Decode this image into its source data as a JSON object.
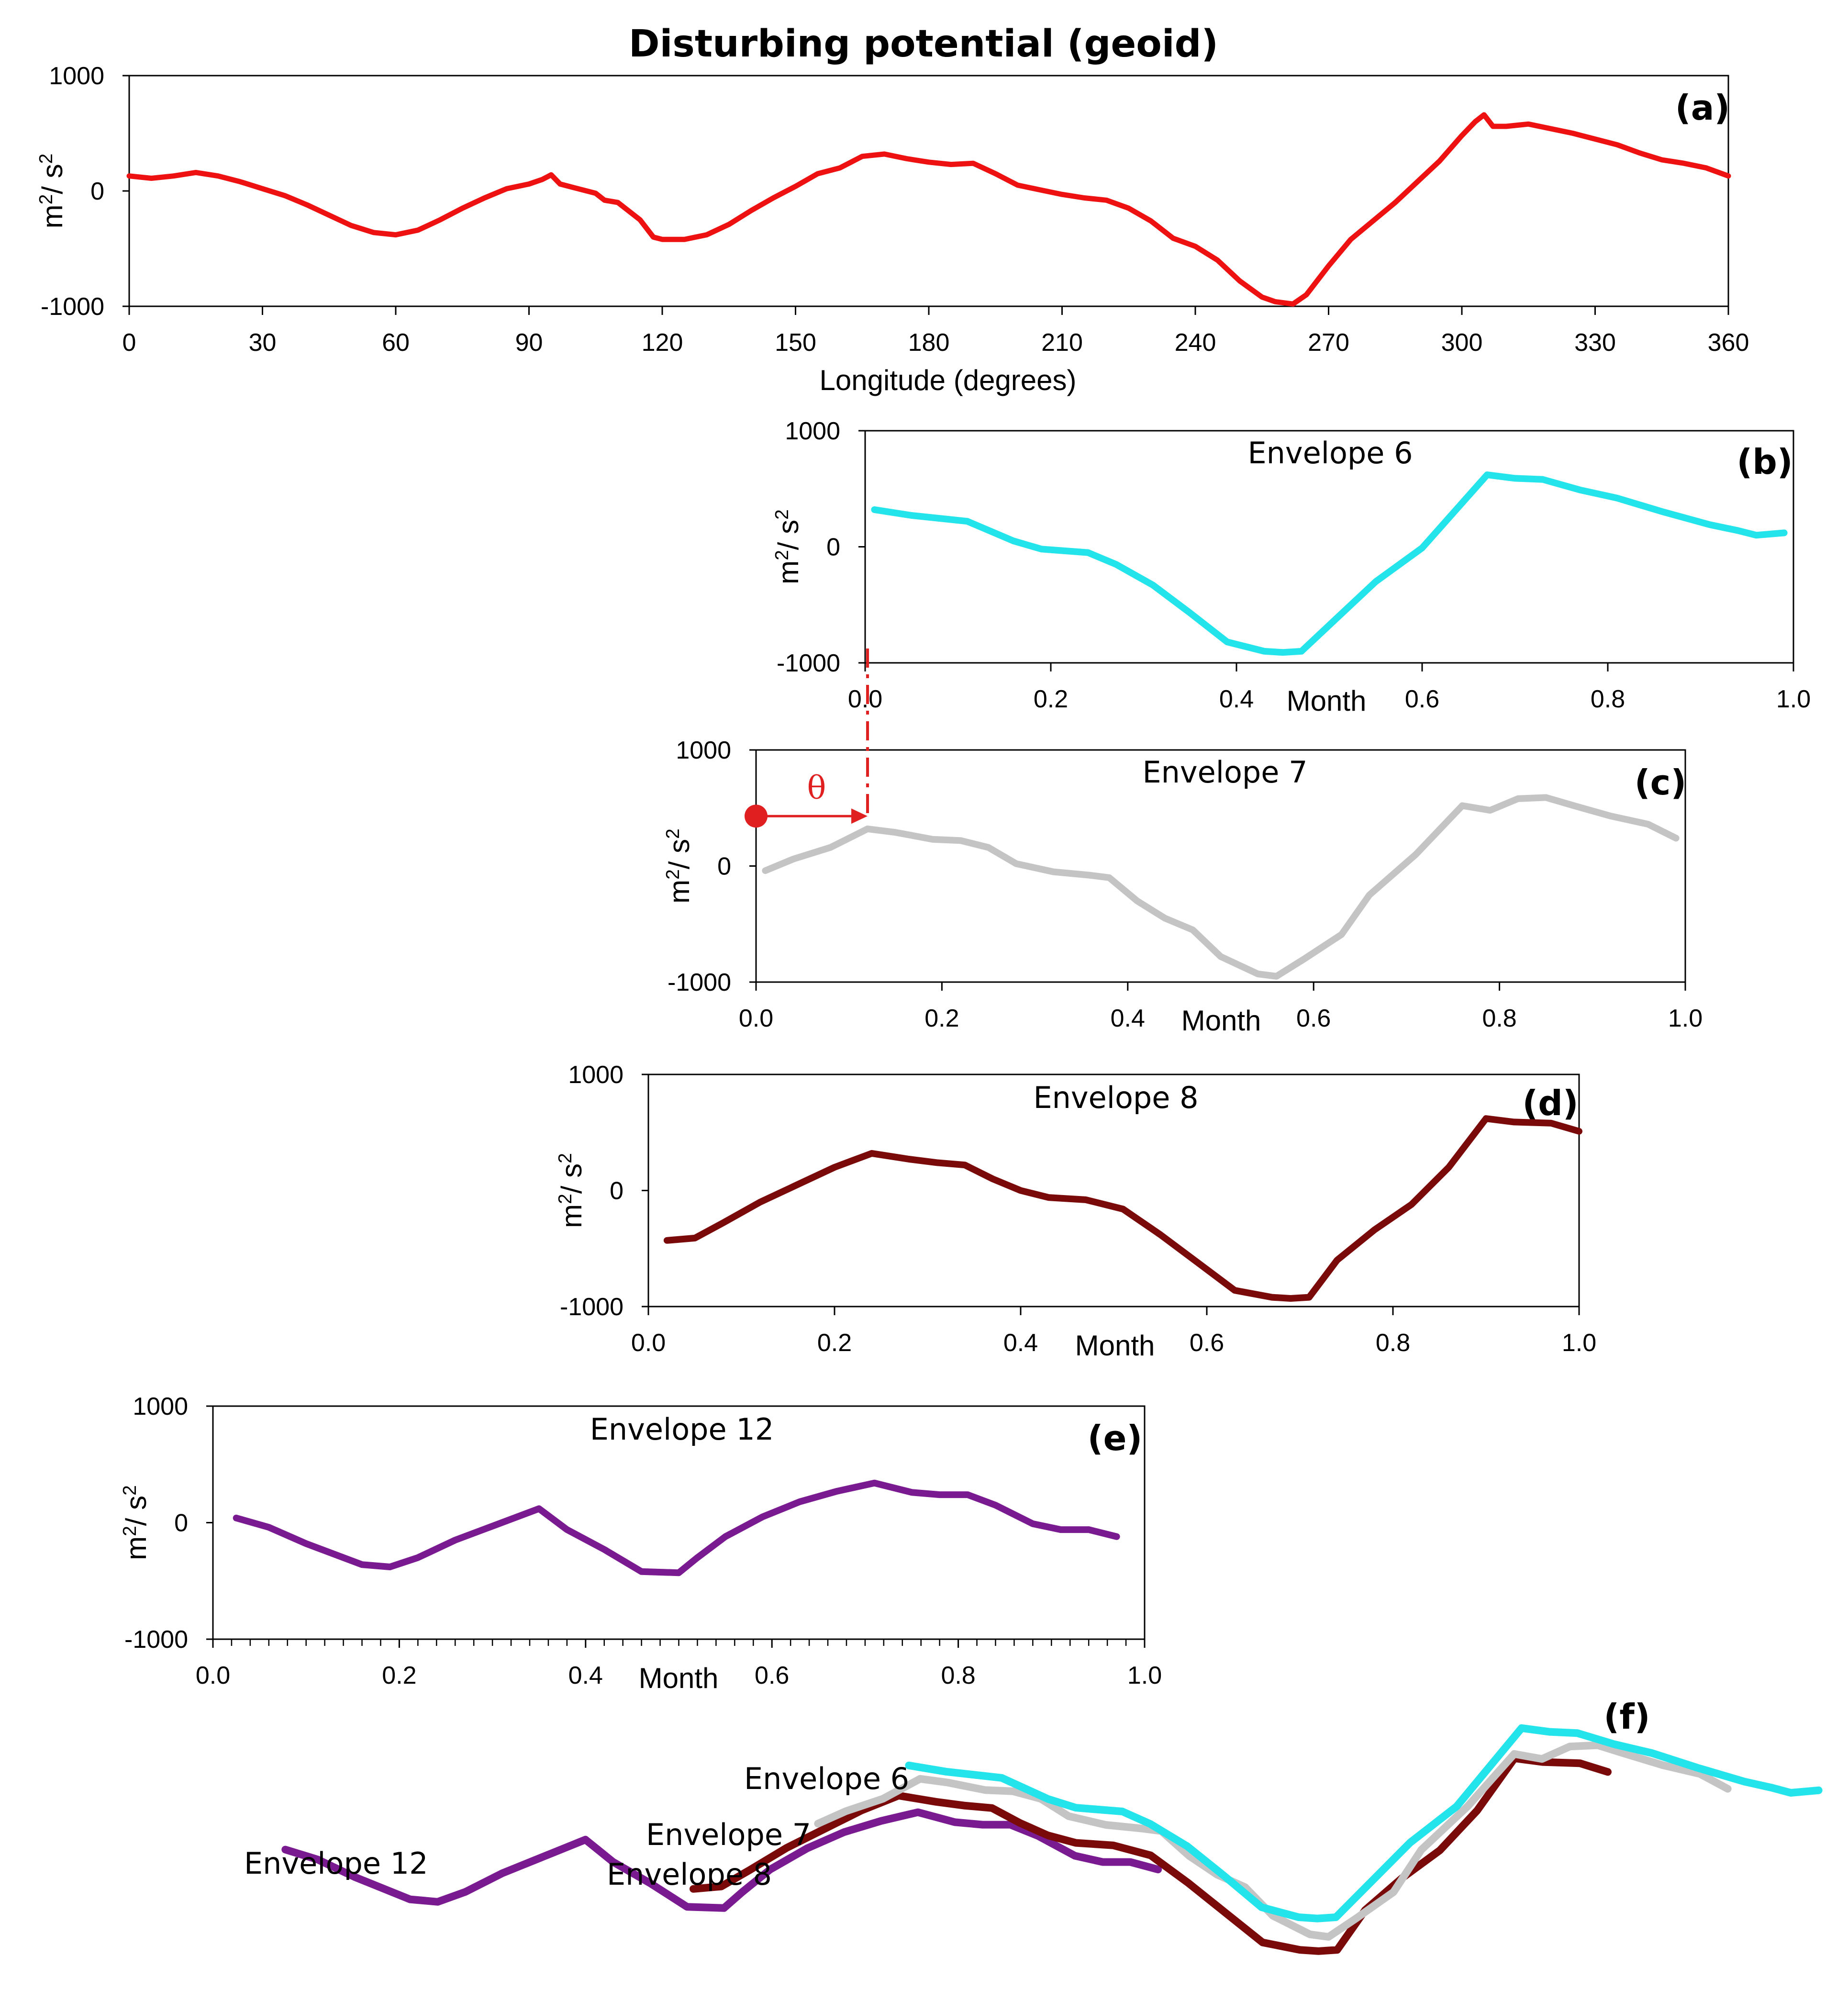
{
  "figure": {
    "title": "Disturbing potential (geoid)",
    "colors": {
      "geoid": "#ee1111",
      "env6": "#22e4ea",
      "env7": "#c4c4c4",
      "env8": "#7a0a0a",
      "env12": "#7a1a90",
      "theta": "#e02020"
    }
  },
  "chart_data": [
    {
      "id": "a",
      "type": "line",
      "panel_label": "(a)",
      "title": "Disturbing potential (geoid)",
      "xlabel": "Longitude (degrees)",
      "ylabel_base": "m",
      "ylabel_sup1": "2",
      "ylabel_mid": "/ s",
      "ylabel_sup2": "2",
      "xlim": [
        0,
        360
      ],
      "ylim": [
        -1000,
        1000
      ],
      "xticks": [
        0,
        30,
        60,
        90,
        120,
        150,
        180,
        210,
        240,
        270,
        300,
        330,
        360
      ],
      "xtick_labels": [
        "0",
        "30",
        "60",
        "90",
        "120",
        "150",
        "180",
        "210",
        "240",
        "270",
        "300",
        "330",
        "360"
      ],
      "yticks": [
        -1000,
        0,
        1000
      ],
      "ytick_labels": [
        "-1000",
        "0",
        "1000"
      ],
      "series": [
        {
          "name": "geoid",
          "color_key": "geoid",
          "x": [
            0,
            5,
            10,
            15,
            20,
            25,
            30,
            35,
            40,
            45,
            50,
            55,
            60,
            65,
            70,
            75,
            80,
            85,
            90,
            93,
            95,
            97,
            100,
            105,
            107,
            110,
            115,
            118,
            120,
            125,
            130,
            135,
            140,
            145,
            150,
            155,
            160,
            165,
            170,
            175,
            180,
            185,
            190,
            195,
            200,
            205,
            210,
            215,
            220,
            225,
            230,
            235,
            240,
            245,
            250,
            255,
            258,
            262,
            265,
            270,
            275,
            280,
            285,
            290,
            295,
            300,
            303,
            305,
            307,
            310,
            315,
            320,
            325,
            330,
            335,
            340,
            345,
            350,
            355,
            360
          ],
          "y": [
            130,
            110,
            130,
            160,
            130,
            80,
            20,
            -40,
            -120,
            -210,
            -300,
            -360,
            -380,
            -340,
            -250,
            -150,
            -60,
            20,
            60,
            100,
            140,
            60,
            30,
            -20,
            -80,
            -100,
            -250,
            -400,
            -420,
            -420,
            -380,
            -290,
            -170,
            -60,
            40,
            150,
            200,
            300,
            320,
            280,
            250,
            230,
            240,
            150,
            50,
            10,
            -30,
            -60,
            -80,
            -150,
            -260,
            -410,
            -480,
            -600,
            -780,
            -920,
            -960,
            -980,
            -900,
            -650,
            -420,
            -260,
            -100,
            80,
            260,
            480,
            600,
            660,
            560,
            560,
            580,
            540,
            500,
            450,
            400,
            330,
            270,
            240,
            200,
            130
          ]
        }
      ]
    },
    {
      "id": "b",
      "type": "line",
      "panel_label": "(b)",
      "title": "Envelope 6",
      "xlabel": "Month",
      "ylabel_base": "m",
      "ylabel_sup1": "2",
      "ylabel_mid": "/ s",
      "ylabel_sup2": "2",
      "xlim": [
        0,
        1
      ],
      "ylim": [
        -1000,
        1000
      ],
      "xticks": [
        0,
        0.2,
        0.4,
        0.6,
        0.8,
        1.0
      ],
      "xtick_labels": [
        "0.0",
        "0.2",
        "0.4",
        "0.6",
        "0.8",
        "1.0"
      ],
      "yticks": [
        -1000,
        0,
        1000
      ],
      "ytick_labels": [
        "-1000",
        "0",
        "1000"
      ],
      "series": [
        {
          "name": "Envelope 6",
          "color_key": "env6",
          "x": [
            0.01,
            0.05,
            0.11,
            0.16,
            0.19,
            0.24,
            0.27,
            0.31,
            0.35,
            0.39,
            0.43,
            0.45,
            0.47,
            0.51,
            0.55,
            0.6,
            0.67,
            0.7,
            0.73,
            0.77,
            0.81,
            0.86,
            0.91,
            0.94,
            0.96,
            0.99
          ],
          "y": [
            320,
            270,
            220,
            50,
            -20,
            -50,
            -150,
            -330,
            -570,
            -820,
            -900,
            -910,
            -900,
            -600,
            -300,
            -10,
            620,
            590,
            580,
            490,
            420,
            300,
            190,
            140,
            100,
            120
          ]
        }
      ]
    },
    {
      "id": "c",
      "type": "line",
      "panel_label": "(c)",
      "title": "Envelope 7",
      "xlabel": "Month",
      "ylabel_base": "m",
      "ylabel_sup1": "2",
      "ylabel_mid": "/ s",
      "ylabel_sup2": "2",
      "xlim": [
        0,
        1
      ],
      "ylim": [
        -1000,
        1000
      ],
      "xticks": [
        0,
        0.2,
        0.4,
        0.6,
        0.8,
        1.0
      ],
      "xtick_labels": [
        "0.0",
        "0.2",
        "0.4",
        "0.6",
        "0.8",
        "1.0"
      ],
      "yticks": [
        -1000,
        0,
        1000
      ],
      "ytick_labels": [
        "-1000",
        "0",
        "1000"
      ],
      "annotation": {
        "symbol": "θ",
        "from_x": 0.0,
        "to_x": 0.12,
        "y": 430
      },
      "series": [
        {
          "name": "Envelope 7",
          "color_key": "env7",
          "x": [
            0.01,
            0.04,
            0.08,
            0.12,
            0.15,
            0.19,
            0.22,
            0.25,
            0.28,
            0.32,
            0.36,
            0.38,
            0.41,
            0.44,
            0.47,
            0.5,
            0.54,
            0.56,
            0.59,
            0.63,
            0.66,
            0.71,
            0.76,
            0.79,
            0.82,
            0.85,
            0.88,
            0.92,
            0.96,
            0.99
          ],
          "y": [
            -40,
            60,
            160,
            320,
            290,
            230,
            220,
            160,
            20,
            -50,
            -80,
            -100,
            -300,
            -450,
            -550,
            -780,
            -930,
            -950,
            -800,
            -590,
            -250,
            100,
            520,
            480,
            580,
            590,
            520,
            430,
            360,
            240
          ]
        }
      ]
    },
    {
      "id": "d",
      "type": "line",
      "panel_label": "(d)",
      "title": "Envelope 8",
      "xlabel": "Month",
      "ylabel_base": "m",
      "ylabel_sup1": "2",
      "ylabel_mid": "/ s",
      "ylabel_sup2": "2",
      "xlim": [
        0,
        1
      ],
      "ylim": [
        -1000,
        1000
      ],
      "xticks": [
        0,
        0.2,
        0.4,
        0.6,
        0.8,
        1.0
      ],
      "xtick_labels": [
        "0.0",
        "0.2",
        "0.4",
        "0.6",
        "0.8",
        "1.0"
      ],
      "yticks": [
        -1000,
        0,
        1000
      ],
      "ytick_labels": [
        "-1000",
        "0",
        "1000"
      ],
      "series": [
        {
          "name": "Envelope 8",
          "color_key": "env8",
          "x": [
            0.02,
            0.05,
            0.08,
            0.12,
            0.16,
            0.2,
            0.24,
            0.28,
            0.31,
            0.34,
            0.37,
            0.4,
            0.43,
            0.47,
            0.51,
            0.55,
            0.59,
            0.63,
            0.67,
            0.69,
            0.71,
            0.74,
            0.78,
            0.82,
            0.86,
            0.9,
            0.93,
            0.97,
            1.0
          ],
          "y": [
            -430,
            -410,
            -280,
            -100,
            50,
            200,
            320,
            270,
            240,
            220,
            100,
            0,
            -60,
            -80,
            -160,
            -380,
            -620,
            -860,
            -920,
            -930,
            -920,
            -600,
            -340,
            -120,
            200,
            620,
            590,
            580,
            510
          ]
        }
      ]
    },
    {
      "id": "e",
      "type": "line",
      "panel_label": "(e)",
      "title": "Envelope 12",
      "xlabel": "Month",
      "ylabel_base": "m",
      "ylabel_sup1": "2",
      "ylabel_mid": "/ s",
      "ylabel_sup2": "2",
      "xlim": [
        0,
        1
      ],
      "ylim": [
        -1000,
        1000
      ],
      "xticks": [
        0,
        0.2,
        0.4,
        0.6,
        0.8,
        1.0
      ],
      "xtick_labels": [
        "0.0",
        "0.2",
        "0.4",
        "0.6",
        "0.8",
        "1.0"
      ],
      "minor_xtick_step": 0.02,
      "yticks": [
        -1000,
        0,
        1000
      ],
      "ytick_labels": [
        "-1000",
        "0",
        "1000"
      ],
      "series": [
        {
          "name": "Envelope 12",
          "color_key": "env12",
          "x": [
            0.025,
            0.06,
            0.1,
            0.16,
            0.19,
            0.22,
            0.26,
            0.3,
            0.35,
            0.38,
            0.42,
            0.46,
            0.5,
            0.52,
            0.55,
            0.59,
            0.63,
            0.67,
            0.71,
            0.75,
            0.78,
            0.81,
            0.84,
            0.88,
            0.91,
            0.94,
            0.97
          ],
          "y": [
            40,
            -40,
            -180,
            -360,
            -380,
            -300,
            -150,
            -30,
            120,
            -60,
            -230,
            -420,
            -430,
            -300,
            -120,
            50,
            180,
            270,
            340,
            260,
            240,
            240,
            150,
            -10,
            -60,
            -60,
            -120
          ]
        }
      ]
    },
    {
      "id": "f",
      "type": "line",
      "panel_label": "(f)",
      "title": "",
      "series_labels": [
        "Envelope 6",
        "Envelope 7",
        "Envelope 8",
        "Envelope 12"
      ],
      "series": [
        {
          "name": "Envelope 12",
          "color_key": "env12",
          "x": [
            0.025,
            0.06,
            0.1,
            0.16,
            0.19,
            0.22,
            0.26,
            0.3,
            0.35,
            0.38,
            0.42,
            0.46,
            0.5,
            0.52,
            0.55,
            0.59,
            0.63,
            0.67,
            0.71,
            0.75,
            0.78,
            0.81,
            0.84,
            0.88,
            0.91,
            0.94,
            0.97
          ],
          "y": [
            40,
            -40,
            -180,
            -360,
            -380,
            -300,
            -150,
            -30,
            120,
            -60,
            -230,
            -420,
            -430,
            -300,
            -120,
            50,
            180,
            270,
            340,
            260,
            240,
            240,
            150,
            -10,
            -60,
            -60,
            -120
          ]
        },
        {
          "name": "Envelope 8",
          "color_key": "env8",
          "x": [
            0.02,
            0.05,
            0.08,
            0.12,
            0.16,
            0.2,
            0.24,
            0.28,
            0.31,
            0.34,
            0.37,
            0.4,
            0.43,
            0.47,
            0.51,
            0.55,
            0.59,
            0.63,
            0.67,
            0.69,
            0.71,
            0.74,
            0.78,
            0.82,
            0.86,
            0.9,
            0.93,
            0.97,
            1.0
          ],
          "y": [
            -430,
            -410,
            -280,
            -100,
            50,
            200,
            320,
            270,
            240,
            220,
            100,
            0,
            -60,
            -80,
            -160,
            -380,
            -620,
            -860,
            -920,
            -930,
            -920,
            -600,
            -340,
            -120,
            200,
            620,
            590,
            580,
            510
          ]
        },
        {
          "name": "Envelope 7",
          "color_key": "env7",
          "x": [
            0.01,
            0.04,
            0.08,
            0.12,
            0.15,
            0.19,
            0.22,
            0.25,
            0.28,
            0.32,
            0.36,
            0.38,
            0.41,
            0.44,
            0.47,
            0.5,
            0.54,
            0.56,
            0.59,
            0.63,
            0.66,
            0.71,
            0.76,
            0.79,
            0.82,
            0.85,
            0.88,
            0.92,
            0.96,
            0.99
          ],
          "y": [
            -40,
            60,
            160,
            320,
            290,
            230,
            220,
            160,
            20,
            -50,
            -80,
            -100,
            -300,
            -450,
            -550,
            -780,
            -930,
            -950,
            -800,
            -590,
            -250,
            100,
            520,
            480,
            580,
            590,
            520,
            430,
            360,
            240
          ]
        },
        {
          "name": "Envelope 6",
          "color_key": "env6",
          "x": [
            0.01,
            0.05,
            0.11,
            0.16,
            0.19,
            0.24,
            0.27,
            0.31,
            0.35,
            0.39,
            0.43,
            0.45,
            0.47,
            0.51,
            0.55,
            0.6,
            0.67,
            0.7,
            0.73,
            0.77,
            0.81,
            0.86,
            0.91,
            0.94,
            0.96,
            0.99
          ],
          "y": [
            320,
            270,
            220,
            50,
            -20,
            -50,
            -150,
            -330,
            -570,
            -820,
            -900,
            -910,
            -900,
            -600,
            -300,
            -10,
            620,
            590,
            580,
            490,
            420,
            300,
            190,
            140,
            100,
            120
          ]
        }
      ]
    }
  ]
}
